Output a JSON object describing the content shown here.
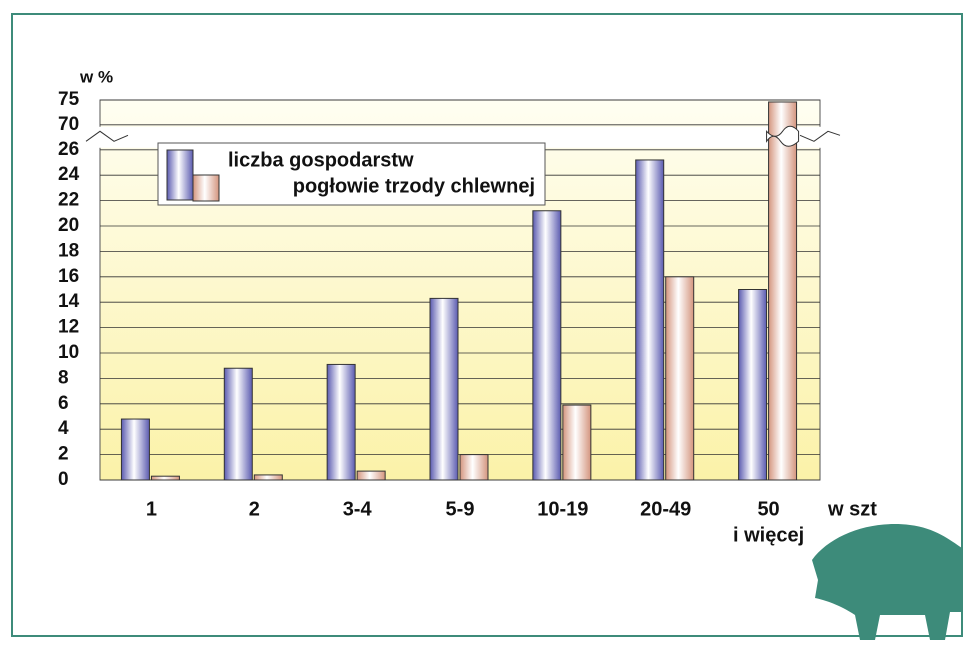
{
  "chart_data": {
    "type": "bar",
    "y_label": "w %",
    "x_label": "w szt",
    "categories": [
      "1",
      "2",
      "3-4",
      "5-9",
      "10-19",
      "20-49",
      [
        "50",
        "i więcej"
      ]
    ],
    "series": [
      {
        "name": "liczba gospodarstw",
        "color": "#5b5bb0",
        "values": [
          4.8,
          8.8,
          9.1,
          14.3,
          21.2,
          25.2,
          15.0
        ]
      },
      {
        "name": "pogłowie trzody chlewnej",
        "color": "#d4957e",
        "values": [
          0.3,
          0.4,
          0.7,
          2.0,
          5.9,
          16.0,
          74.6
        ]
      }
    ],
    "ylim": [
      0,
      75
    ],
    "y_break": [
      26,
      70
    ],
    "yticks": [
      0,
      2,
      4,
      6,
      8,
      10,
      12,
      14,
      16,
      18,
      20,
      22,
      24,
      26,
      70,
      75
    ],
    "grid": true
  }
}
